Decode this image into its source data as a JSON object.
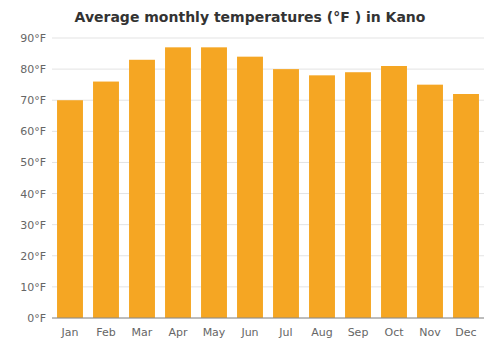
{
  "chart_data": {
    "type": "bar",
    "title": "Average monthly temperatures (°F ) in Kano",
    "categories": [
      "Jan",
      "Feb",
      "Mar",
      "Apr",
      "May",
      "Jun",
      "Jul",
      "Aug",
      "Sep",
      "Oct",
      "Nov",
      "Dec"
    ],
    "values": [
      70,
      76,
      83,
      87,
      87,
      84,
      80,
      78,
      79,
      81,
      75,
      72
    ],
    "color": "#F5A623",
    "ylim": [
      0,
      90
    ],
    "yticks": [
      {
        "value": 0,
        "label": "0°F"
      },
      {
        "value": 10,
        "label": "10°F"
      },
      {
        "value": 20,
        "label": "20°F"
      },
      {
        "value": 30,
        "label": "30°F"
      },
      {
        "value": 40,
        "label": "40°F"
      },
      {
        "value": 50,
        "label": "50°F"
      },
      {
        "value": 60,
        "label": "60°F"
      },
      {
        "value": 70,
        "label": "70°F"
      },
      {
        "value": 80,
        "label": "80°F"
      },
      {
        "value": 90,
        "label": "90°F"
      }
    ],
    "grid": true
  }
}
